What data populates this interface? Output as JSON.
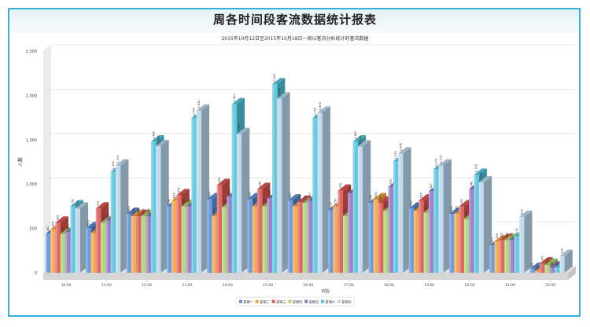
{
  "chart_data": {
    "type": "bar",
    "style": "3d-clustered",
    "title": "周各时间段客流数据统计报表",
    "subtitle": "2015年10月12日至2015年10月18日一周以客流分析统计的客流数据",
    "xlabel": "时段",
    "ylabel": "人数",
    "ylim": [
      0,
      2500
    ],
    "yticks": [
      "0",
      "500",
      "1,000",
      "1,500",
      "2,000",
      "2,500"
    ],
    "ytick_values": [
      0,
      500,
      1000,
      1500,
      2000,
      2500
    ],
    "grid": true,
    "legend_position": "bottom",
    "categories": [
      "10:00",
      "11:00",
      "12:00",
      "13:00",
      "14:00",
      "15:00",
      "16:00",
      "17:00",
      "18:00",
      "19:00",
      "20:00",
      "21:00",
      "22:00"
    ],
    "series": [
      {
        "name": "星期一",
        "color": "#5b8fd6",
        "values": [
          440,
          505,
          665,
          750,
          830,
          830,
          815,
          710,
          790,
          725,
          665,
          310,
          45
        ]
      },
      {
        "name": "星期二",
        "color": "#f5a040",
        "values": [
          490,
          450,
          640,
          815,
          640,
          750,
          750,
          750,
          830,
          700,
          665,
          355,
          20
        ]
      },
      {
        "name": "星期三",
        "color": "#d9534f",
        "values": [
          565,
          725,
          640,
          875,
          990,
          945,
          800,
          925,
          790,
          815,
          750,
          370,
          105
        ]
      },
      {
        "name": "星期四",
        "color": "#a8d26a",
        "values": [
          440,
          565,
          640,
          750,
          740,
          750,
          790,
          640,
          700,
          680,
          610,
          370,
          90
        ]
      },
      {
        "name": "星期五",
        "color": "#9170c0",
        "values": [
          460,
          590,
          640,
          750,
          860,
          840,
          815,
          900,
          970,
          920,
          945,
          370,
          60
        ]
      },
      {
        "name": "星期六",
        "color": "#4fc3dc",
        "values": [
          750,
          1140,
          1480,
          1745,
          1900,
          2125,
          1745,
          1480,
          1255,
          1170,
          1105,
          415,
          60
        ]
      },
      {
        "name": "星期日",
        "color": "#b8d4e8",
        "values": [
          725,
          1210,
          1430,
          1830,
          1565,
          1965,
          1805,
          1425,
          1345,
          1210,
          1020,
          630,
          190
        ]
      }
    ]
  }
}
